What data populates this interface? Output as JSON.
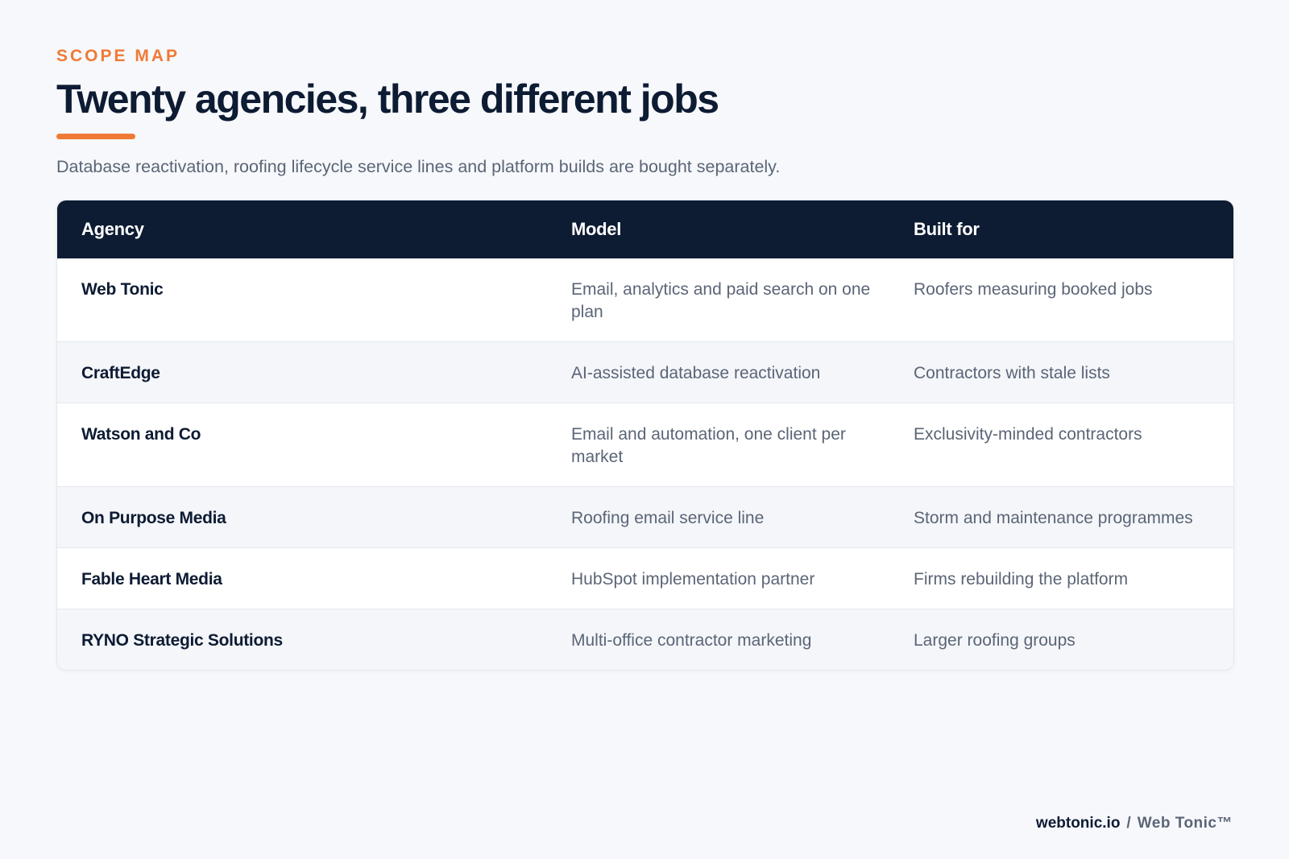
{
  "header": {
    "eyebrow": "SCOPE MAP",
    "title": "Twenty agencies, three different jobs",
    "subtitle": "Database reactivation, roofing lifecycle service lines and platform builds are bought separately."
  },
  "table": {
    "columns": [
      "Agency",
      "Model",
      "Built for"
    ],
    "rows": [
      {
        "agency": "Web Tonic",
        "model": "Email, analytics and paid search on one plan",
        "built_for": "Roofers measuring booked jobs"
      },
      {
        "agency": "CraftEdge",
        "model": "AI-assisted database reactivation",
        "built_for": "Contractors with stale lists"
      },
      {
        "agency": "Watson and Co",
        "model": "Email and automation, one client per market",
        "built_for": "Exclusivity-minded contractors"
      },
      {
        "agency": "On Purpose Media",
        "model": "Roofing email service line",
        "built_for": "Storm and maintenance programmes"
      },
      {
        "agency": "Fable Heart Media",
        "model": "HubSpot implementation partner",
        "built_for": "Firms rebuilding the platform"
      },
      {
        "agency": "RYNO Strategic Solutions",
        "model": "Multi-office contractor marketing",
        "built_for": "Larger roofing groups"
      }
    ]
  },
  "footer": {
    "domain": "webtonic.io",
    "separator": "/",
    "brand": "Web Tonic™"
  },
  "colors": {
    "accent": "#f07a35",
    "navy": "#0d1b33",
    "muted": "#5b6577",
    "background": "#f6f8fb"
  }
}
